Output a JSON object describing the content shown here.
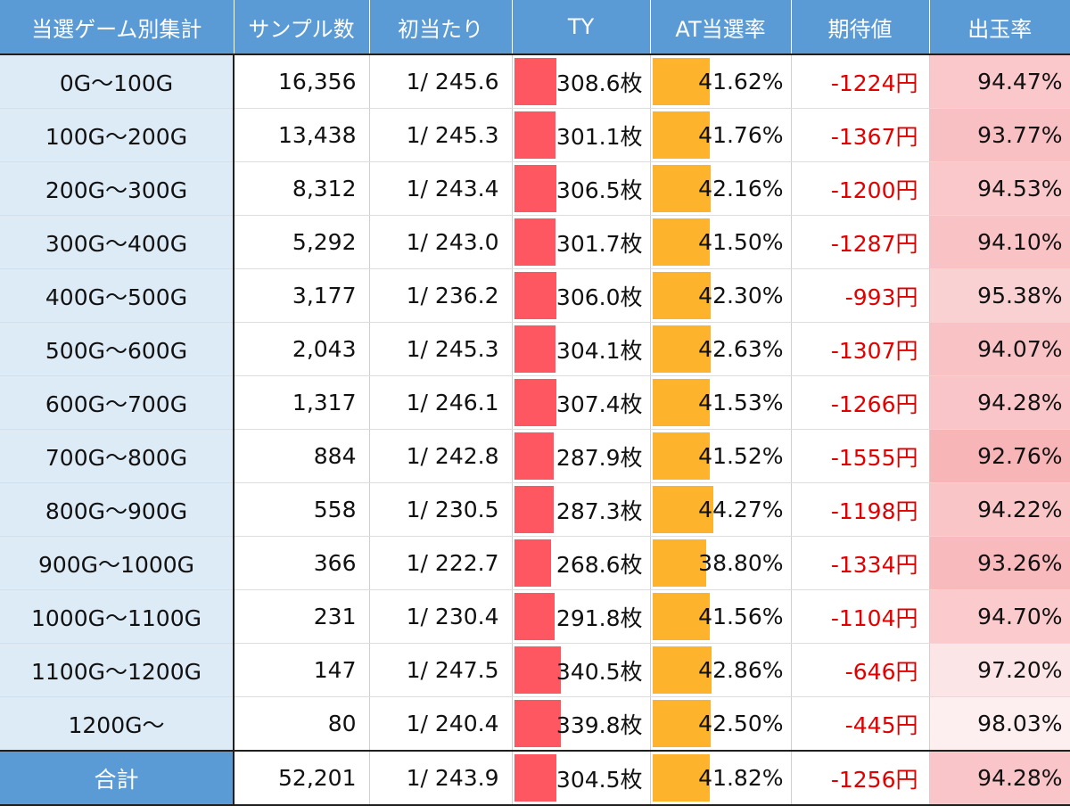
{
  "headers": {
    "range": "当選ゲーム別集計",
    "samples": "サンプル数",
    "first_hit": "初当たり",
    "ty": "TY",
    "at_rate": "AT当選率",
    "expected": "期待値",
    "payout": "出玉率"
  },
  "colors": {
    "header": "#5b9bd5",
    "label_bg": "#ddebf7",
    "ty_bar": "#ff5761",
    "at_bar": "#fdb32c",
    "negative": "#e00000",
    "payout_scale_low": "#f8b5b8",
    "payout_scale_high": "#fdeeef"
  },
  "rows": [
    {
      "range": "0G～100G",
      "samples": "16,356",
      "first_hit": "1/ 245.6",
      "ty": "308.6枚",
      "ty_value": 308.6,
      "at": "41.62%",
      "at_value": 41.62,
      "ev": "-1224円",
      "payout": "94.47%",
      "payout_value": 94.47
    },
    {
      "range": "100G～200G",
      "samples": "13,438",
      "first_hit": "1/ 245.3",
      "ty": "301.1枚",
      "ty_value": 301.1,
      "at": "41.76%",
      "at_value": 41.76,
      "ev": "-1367円",
      "payout": "93.77%",
      "payout_value": 93.77
    },
    {
      "range": "200G～300G",
      "samples": "8,312",
      "first_hit": "1/ 243.4",
      "ty": "306.5枚",
      "ty_value": 306.5,
      "at": "42.16%",
      "at_value": 42.16,
      "ev": "-1200円",
      "payout": "94.53%",
      "payout_value": 94.53
    },
    {
      "range": "300G～400G",
      "samples": "5,292",
      "first_hit": "1/ 243.0",
      "ty": "301.7枚",
      "ty_value": 301.7,
      "at": "41.50%",
      "at_value": 41.5,
      "ev": "-1287円",
      "payout": "94.10%",
      "payout_value": 94.1
    },
    {
      "range": "400G～500G",
      "samples": "3,177",
      "first_hit": "1/ 236.2",
      "ty": "306.0枚",
      "ty_value": 306.0,
      "at": "42.30%",
      "at_value": 42.3,
      "ev": "-993円",
      "payout": "95.38%",
      "payout_value": 95.38
    },
    {
      "range": "500G～600G",
      "samples": "2,043",
      "first_hit": "1/ 245.3",
      "ty": "304.1枚",
      "ty_value": 304.1,
      "at": "42.63%",
      "at_value": 42.63,
      "ev": "-1307円",
      "payout": "94.07%",
      "payout_value": 94.07
    },
    {
      "range": "600G～700G",
      "samples": "1,317",
      "first_hit": "1/ 246.1",
      "ty": "307.4枚",
      "ty_value": 307.4,
      "at": "41.53%",
      "at_value": 41.53,
      "ev": "-1266円",
      "payout": "94.28%",
      "payout_value": 94.28
    },
    {
      "range": "700G～800G",
      "samples": "884",
      "first_hit": "1/ 242.8",
      "ty": "287.9枚",
      "ty_value": 287.9,
      "at": "41.52%",
      "at_value": 41.52,
      "ev": "-1555円",
      "payout": "92.76%",
      "payout_value": 92.76
    },
    {
      "range": "800G～900G",
      "samples": "558",
      "first_hit": "1/ 230.5",
      "ty": "287.3枚",
      "ty_value": 287.3,
      "at": "44.27%",
      "at_value": 44.27,
      "ev": "-1198円",
      "payout": "94.22%",
      "payout_value": 94.22
    },
    {
      "range": "900G～1000G",
      "samples": "366",
      "first_hit": "1/ 222.7",
      "ty": "268.6枚",
      "ty_value": 268.6,
      "at": "38.80%",
      "at_value": 38.8,
      "ev": "-1334円",
      "payout": "93.26%",
      "payout_value": 93.26
    },
    {
      "range": "1000G～1100G",
      "samples": "231",
      "first_hit": "1/ 230.4",
      "ty": "291.8枚",
      "ty_value": 291.8,
      "at": "41.56%",
      "at_value": 41.56,
      "ev": "-1104円",
      "payout": "94.70%",
      "payout_value": 94.7
    },
    {
      "range": "1100G～1200G",
      "samples": "147",
      "first_hit": "1/ 247.5",
      "ty": "340.5枚",
      "ty_value": 340.5,
      "at": "42.86%",
      "at_value": 42.86,
      "ev": "-646円",
      "payout": "97.20%",
      "payout_value": 97.2
    },
    {
      "range": "1200G～",
      "samples": "80",
      "first_hit": "1/ 240.4",
      "ty": "339.8枚",
      "ty_value": 339.8,
      "at": "42.50%",
      "at_value": 42.5,
      "ev": "-445円",
      "payout": "98.03%",
      "payout_value": 98.03
    }
  ],
  "total": {
    "range": "合計",
    "samples": "52,201",
    "first_hit": "1/ 243.9",
    "ty": "304.5枚",
    "ty_value": 304.5,
    "at": "41.82%",
    "at_value": 41.82,
    "ev": "-1256円",
    "payout": "94.28%",
    "payout_value": 94.28
  }
}
